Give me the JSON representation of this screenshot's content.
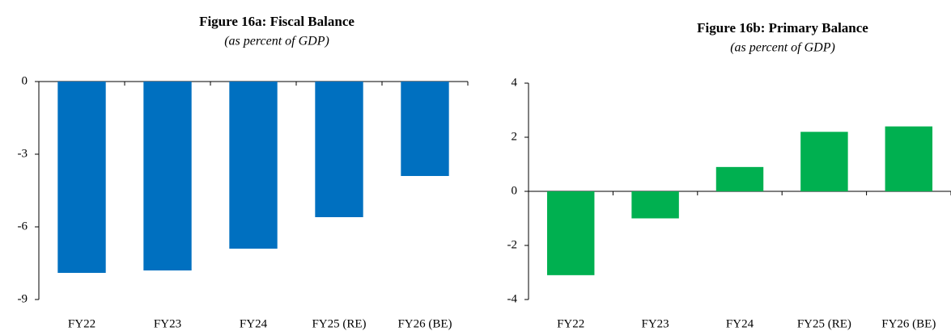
{
  "chart_data": [
    {
      "type": "bar",
      "title": "Figure 16a: Fiscal Balance",
      "subtitle": "(as percent of GDP)",
      "categories": [
        "FY22",
        "FY23",
        "FY24",
        "FY25 (RE)",
        "FY26 (BE)"
      ],
      "values": [
        -7.9,
        -7.8,
        -6.9,
        -5.6,
        -3.9
      ],
      "color": "#0070c0",
      "ylim": [
        -9,
        0
      ],
      "yticks": [
        -9,
        -6,
        -3,
        0
      ]
    },
    {
      "type": "bar",
      "title": "Figure 16b: Primary Balance",
      "subtitle": "(as percent of GDP)",
      "categories": [
        "FY22",
        "FY23",
        "FY24",
        "FY25 (RE)",
        "FY26 (BE)"
      ],
      "values": [
        -3.1,
        -1.0,
        0.9,
        2.2,
        2.4
      ],
      "color": "#00b050",
      "ylim": [
        -4,
        4
      ],
      "yticks": [
        -4,
        -2,
        0,
        2,
        4
      ]
    }
  ]
}
